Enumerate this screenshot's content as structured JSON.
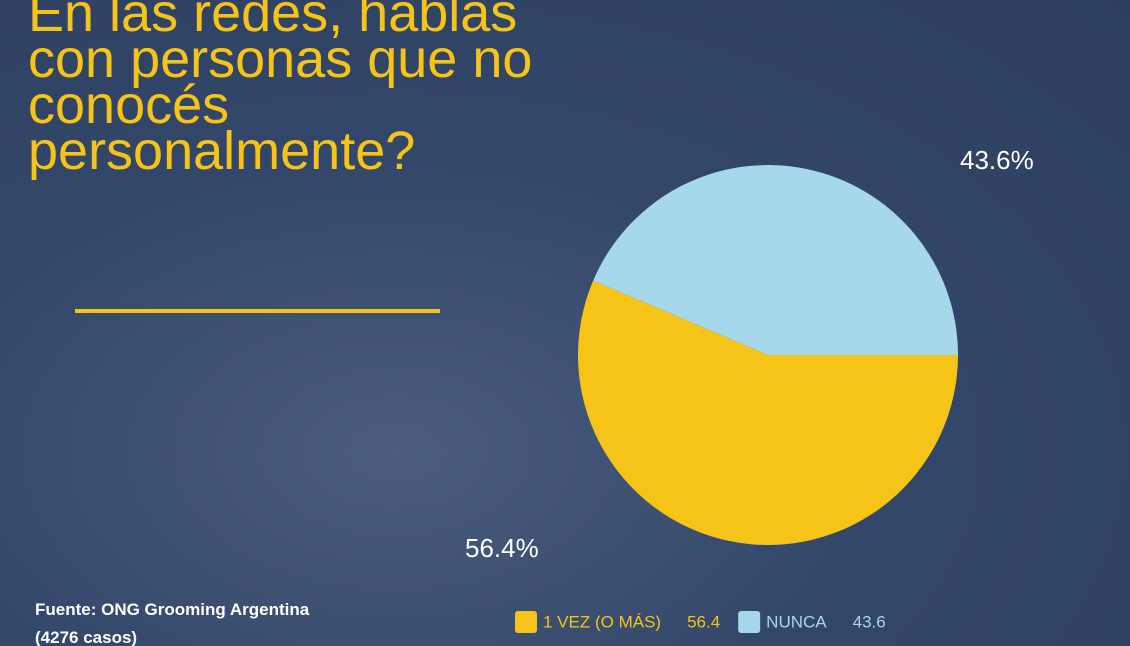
{
  "chart_data": {
    "type": "pie",
    "title": "En las redes, hablás con personas que no conocés personalmente?",
    "categories": [
      "1 VEZ (O MÁS)",
      "NUNCA"
    ],
    "values": [
      56.4,
      43.6
    ],
    "value_labels": [
      "56.4%",
      "43.6%"
    ],
    "colors": [
      "#f6c416",
      "#a6d8ec"
    ],
    "source": "Fuente: ONG Grooming Argentina (4276 casos)"
  }
}
